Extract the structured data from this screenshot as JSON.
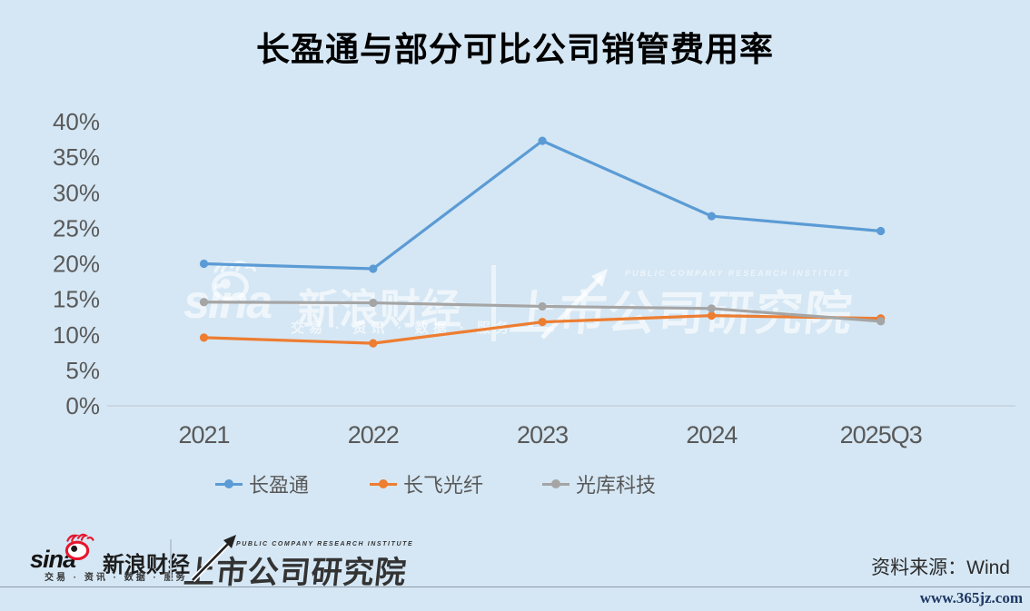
{
  "page": {
    "background_color": "#D5E7F4",
    "axis_text_color": "#595959"
  },
  "chart_data": {
    "type": "line",
    "title": "长盈通与部分可比公司销管费用率",
    "categories": [
      "2021",
      "2022",
      "2023",
      "2024",
      "2025Q3"
    ],
    "series": [
      {
        "name": "长盈通",
        "color": "#5B9BD5",
        "values": [
          20.0,
          19.3,
          37.3,
          26.7,
          24.6
        ]
      },
      {
        "name": "长飞光纤",
        "color": "#ED7D31",
        "values": [
          9.6,
          8.8,
          11.8,
          12.7,
          12.3
        ]
      },
      {
        "name": "光库科技",
        "color": "#A5A5A5",
        "values": [
          14.6,
          14.5,
          14.0,
          13.7,
          11.9
        ]
      }
    ],
    "unit": "%",
    "ylim": [
      0,
      40
    ],
    "ytick_step": 5,
    "ytick_labels": [
      "0%",
      "5%",
      "10%",
      "15%",
      "20%",
      "25%",
      "30%",
      "35%",
      "40%"
    ],
    "xlabel": "",
    "ylabel": "",
    "grid": false,
    "legend_position": "bottom"
  },
  "watermark": {
    "sina_logo_text": "sina",
    "sina_brand": "新浪财经",
    "sina_slogan": "交易 · 资讯 · 数据 · 服务",
    "institute_en": "PUBLIC COMPANY RESEARCH INSTITUTE",
    "institute": "上市公司研究院"
  },
  "footer": {
    "sina_logo_text": "sina",
    "sina_brand": "新浪财经",
    "sina_slogan": "交易 · 资讯 · 数据 · 服务",
    "institute_en": "PUBLIC COMPANY RESEARCH INSTITUTE",
    "institute": "上市公司研究院",
    "source": "资料来源：Wind",
    "site": "www.365jz.com"
  }
}
